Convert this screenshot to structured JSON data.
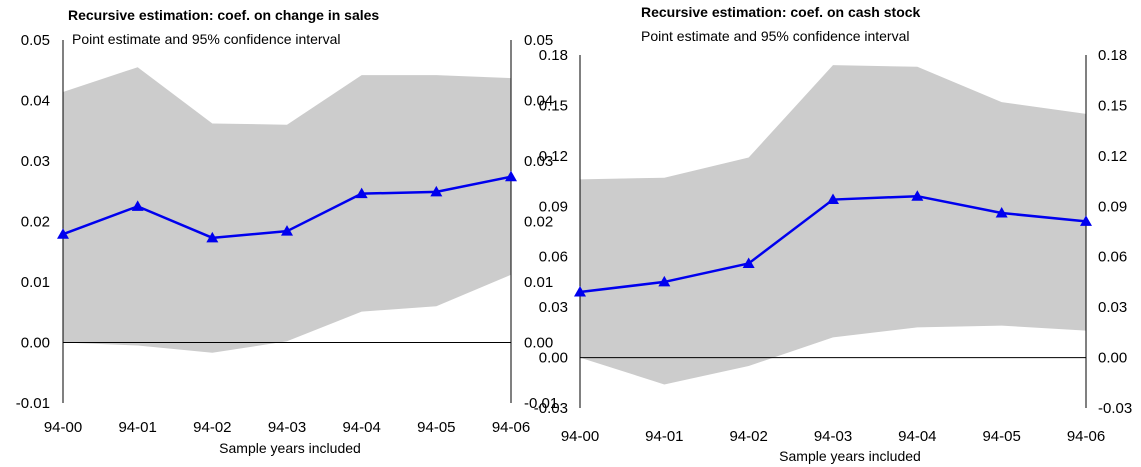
{
  "chart_data": [
    {
      "type": "line",
      "title": "Recursive estimation: coef. on change in sales",
      "subtitle": "Point estimate and 95% confidence interval",
      "xlabel": "Sample years included",
      "ylabel": "",
      "categories": [
        "94-00",
        "94-01",
        "94-02",
        "94-03",
        "94-04",
        "94-05",
        "94-06"
      ],
      "ylim": [
        -0.01,
        0.05
      ],
      "yticks": [
        "0.05",
        "0.04",
        "0.03",
        "0.02",
        "0.01",
        "0.00",
        "-0.01"
      ],
      "yticks_values": [
        0.05,
        0.04,
        0.03,
        0.02,
        0.01,
        0.0,
        -0.01
      ],
      "series": [
        {
          "values": [
            0.0179,
            0.0225,
            0.0173,
            0.0184,
            0.0246,
            0.0249,
            0.0274
          ]
        }
      ],
      "band_upper": [
        0.0414,
        0.0455,
        0.0362,
        0.036,
        0.0442,
        0.0442,
        0.0437
      ],
      "band_lower": [
        0.0,
        -0.0005,
        -0.0017,
        0.0002,
        0.0051,
        0.006,
        0.0112
      ],
      "grid": false,
      "colors": {
        "line": "#0000ee",
        "band": "#cccccc",
        "axis": "#000000"
      }
    },
    {
      "type": "line",
      "title": "Recursive estimation: coef. on cash stock",
      "subtitle": "Point estimate and 95% confidence interval",
      "xlabel": "Sample years included",
      "ylabel": "",
      "categories": [
        "94-00",
        "94-01",
        "94-02",
        "94-03",
        "94-04",
        "94-05",
        "94-06"
      ],
      "ylim": [
        -0.03,
        0.18
      ],
      "yticks": [
        "0.18",
        "0.15",
        "0.12",
        "0.09",
        "0.06",
        "0.03",
        "0.00",
        "-0.03"
      ],
      "yticks_values": [
        0.18,
        0.15,
        0.12,
        0.09,
        0.06,
        0.03,
        0.0,
        -0.03
      ],
      "series": [
        {
          "values": [
            0.039,
            0.045,
            0.056,
            0.094,
            0.096,
            0.086,
            0.081
          ]
        }
      ],
      "band_upper": [
        0.106,
        0.107,
        0.119,
        0.174,
        0.173,
        0.152,
        0.145
      ],
      "band_lower": [
        0.0,
        -0.016,
        -0.005,
        0.012,
        0.018,
        0.019,
        0.016
      ],
      "grid": false,
      "colors": {
        "line": "#0000ee",
        "band": "#cccccc",
        "axis": "#000000"
      }
    }
  ]
}
